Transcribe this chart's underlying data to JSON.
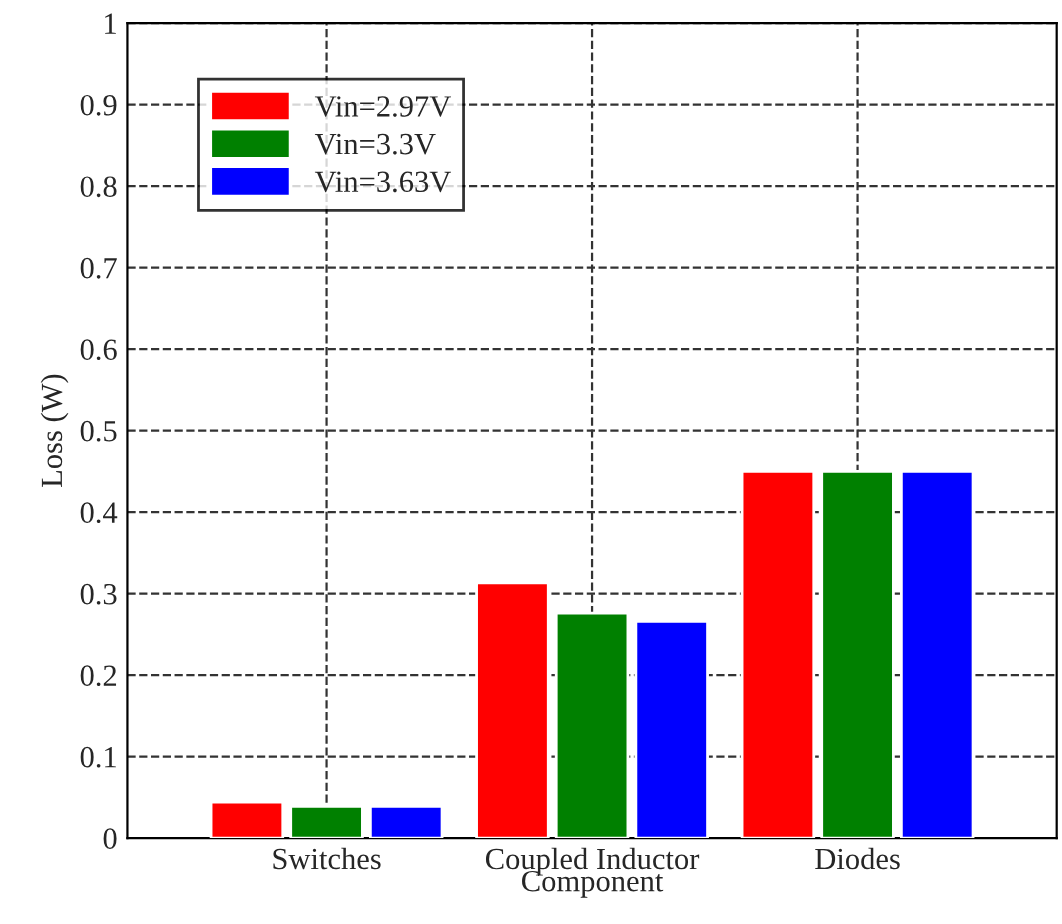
{
  "chart_data": {
    "type": "bar",
    "xlabel": "Component",
    "ylabel": "Loss (W)",
    "categories": [
      "Switches",
      "Coupled Inductor",
      "Diodes"
    ],
    "series": [
      {
        "name": "Vin=2.97V",
        "color": "#ff0000",
        "values": [
          0.044,
          0.313,
          0.45
        ]
      },
      {
        "name": "Vin=3.3V",
        "color": "#008000",
        "values": [
          0.039,
          0.276,
          0.45
        ]
      },
      {
        "name": "Vin=3.63V",
        "color": "#0000ff",
        "values": [
          0.039,
          0.266,
          0.45
        ]
      }
    ],
    "ylim": [
      0,
      1
    ],
    "yticks": [
      0,
      0.1,
      0.2,
      0.3,
      0.4,
      0.5,
      0.6,
      0.7,
      0.8,
      0.9,
      1
    ],
    "grid": true,
    "legend": "top left"
  }
}
